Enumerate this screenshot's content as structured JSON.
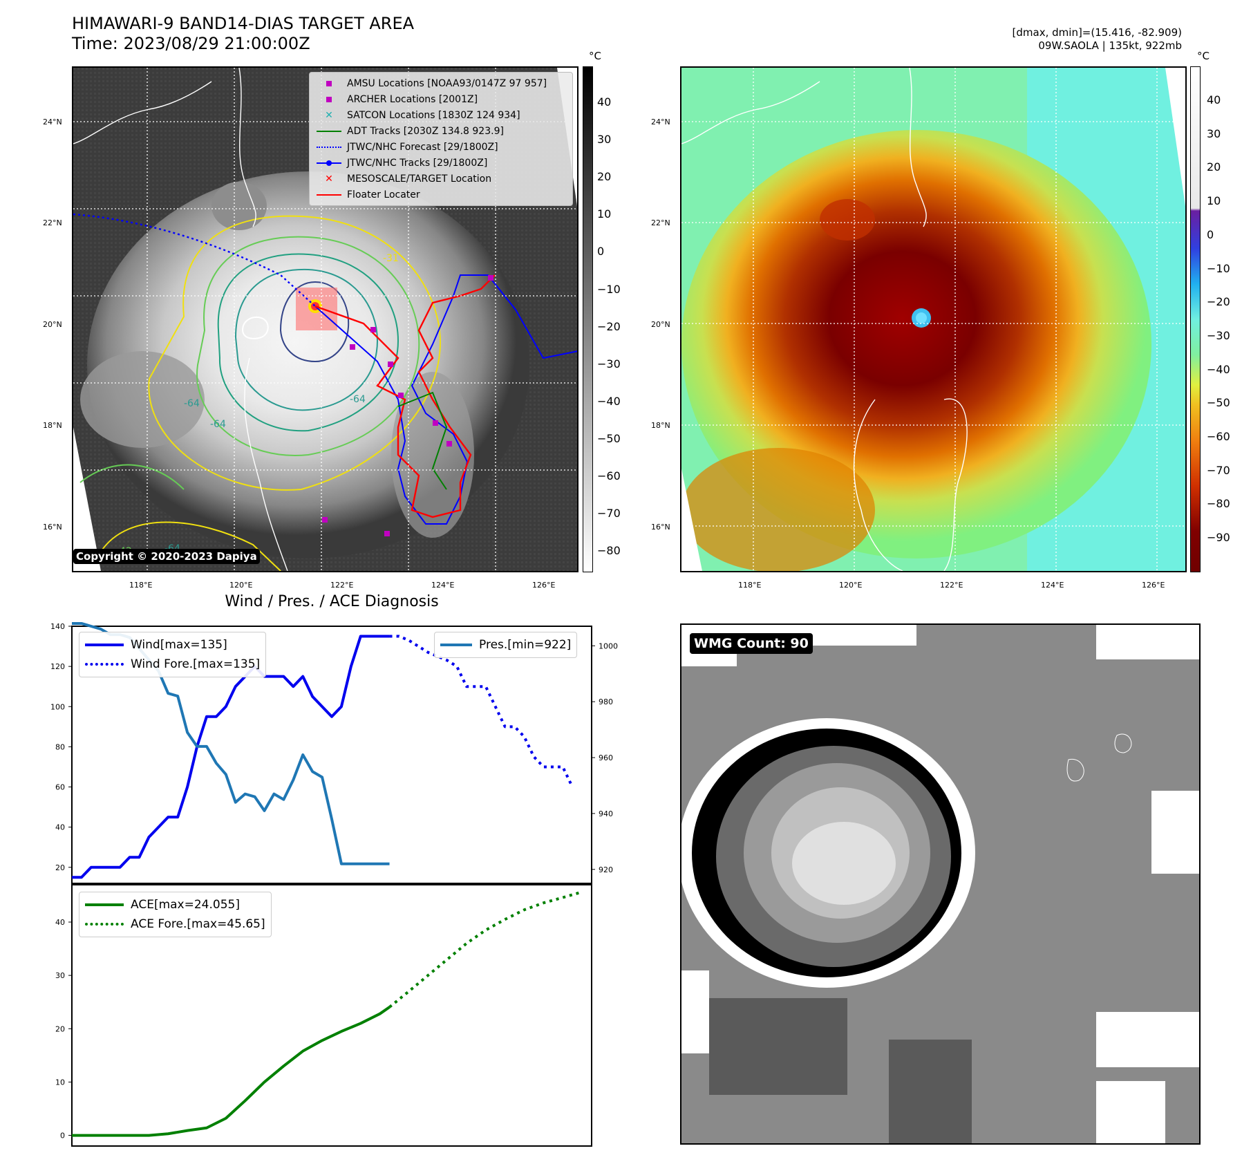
{
  "header": {
    "title_line1": "HIMAWARI-9 BAND14-DIAS TARGET AREA",
    "title_line2": "Time: 2023/08/29 21:00:00Z",
    "right_line1": "[dmax, dmin]=(15.416, -82.909)",
    "right_line2": "09W.SAOLA | 135kt, 922mb"
  },
  "map_left": {
    "lat_labels": [
      "24°N",
      "22°N",
      "20°N",
      "18°N",
      "16°N"
    ],
    "lon_labels": [
      "118°E",
      "120°E",
      "122°E",
      "124°E",
      "126°E"
    ],
    "copyright": "Copyright © 2020-2023 Dapiya",
    "contour_labels": [
      "-31",
      "-64",
      "-64",
      "-64",
      "-64",
      "-42"
    ],
    "legend": [
      {
        "label": "AMSU Locations [NOAA93/0147Z 97 957]",
        "color": "#c000c0",
        "kind": "square"
      },
      {
        "label": "ARCHER Locations [2001Z]",
        "color": "#c000c0",
        "kind": "square"
      },
      {
        "label": "SATCON Locations [1830Z 124 934]",
        "color": "#20b0b0",
        "kind": "x"
      },
      {
        "label": "ADT Tracks [2030Z 134.8 923.9]",
        "color": "#008000",
        "kind": "line"
      },
      {
        "label": "JTWC/NHC Forecast [29/1800Z]",
        "color": "#0000ff",
        "kind": "dotted"
      },
      {
        "label": "JTWC/NHC Tracks [29/1800Z]",
        "color": "#0000ff",
        "kind": "dotline"
      },
      {
        "label": "MESOSCALE/TARGET Location",
        "color": "#ff0000",
        "kind": "x"
      },
      {
        "label": "Floater Locater",
        "color": "#ff0000",
        "kind": "line"
      }
    ]
  },
  "colorbar_left": {
    "unit": "°C",
    "ticks": [
      "40",
      "30",
      "20",
      "10",
      "0",
      "−10",
      "−20",
      "−30",
      "−40",
      "−50",
      "−60",
      "−70",
      "−80"
    ]
  },
  "map_right": {
    "lat_labels": [
      "24°N",
      "22°N",
      "20°N",
      "18°N",
      "16°N"
    ],
    "lon_labels": [
      "118°E",
      "120°E",
      "122°E",
      "124°E",
      "126°E"
    ]
  },
  "colorbar_right": {
    "unit": "°C",
    "ticks": [
      "40",
      "30",
      "20",
      "10",
      "0",
      "−10",
      "−20",
      "−30",
      "−40",
      "−50",
      "−60",
      "−70",
      "−80",
      "−90"
    ]
  },
  "wmg": {
    "label": "WMG Count: 90"
  },
  "chart_data": [
    {
      "type": "line",
      "title": "Wind / Pres. / ACE Diagnosis",
      "ylabel": "Wind",
      "y2label": "Pressure",
      "ylim": [
        12,
        140
      ],
      "yticks": [
        20,
        40,
        60,
        80,
        100,
        120,
        140
      ],
      "y2lim": [
        915,
        1007
      ],
      "y2ticks": [
        920,
        940,
        960,
        980,
        1000
      ],
      "x_index_range": [
        0,
        54
      ],
      "series": [
        {
          "name": "Wind[max=135]",
          "color": "#0000ee",
          "style": "solid",
          "axis": "left",
          "x": [
            0,
            1,
            2,
            3,
            4,
            5,
            6,
            7,
            8,
            9,
            10,
            11,
            12,
            13,
            14,
            15,
            16,
            17,
            18,
            19,
            20,
            21,
            22,
            23,
            24,
            25,
            26,
            27,
            28,
            29,
            30,
            31,
            32,
            33
          ],
          "y": [
            15,
            15,
            20,
            20,
            20,
            20,
            25,
            25,
            35,
            40,
            45,
            45,
            60,
            80,
            95,
            95,
            100,
            110,
            115,
            120,
            115,
            115,
            115,
            110,
            115,
            105,
            100,
            95,
            100,
            120,
            135,
            135,
            135,
            135
          ]
        },
        {
          "name": "Wind Fore.[max=135]",
          "color": "#0000ee",
          "style": "dotted",
          "axis": "left",
          "x": [
            33,
            34,
            35,
            36,
            37,
            38,
            39,
            40,
            41,
            42,
            43,
            44,
            45,
            46,
            47,
            48,
            49,
            50,
            51,
            52
          ],
          "y": [
            135,
            135,
            133,
            130,
            127,
            125,
            123,
            120,
            110,
            110,
            110,
            100,
            90,
            90,
            85,
            75,
            70,
            70,
            70,
            60
          ]
        },
        {
          "name": "Pres.[min=922]",
          "color": "#1f77b4",
          "style": "solid",
          "axis": "right",
          "x": [
            0,
            1,
            2,
            3,
            4,
            5,
            6,
            7,
            8,
            9,
            10,
            11,
            12,
            13,
            14,
            15,
            16,
            17,
            18,
            19,
            20,
            21,
            22,
            23,
            24,
            25,
            26,
            27,
            28,
            29,
            30,
            31,
            32,
            33
          ],
          "y": [
            1008,
            1008,
            1007,
            1006,
            1004,
            1004,
            1003,
            999,
            995,
            991,
            983,
            982,
            969,
            964,
            964,
            958,
            954,
            944,
            947,
            946,
            941,
            947,
            945,
            952,
            961,
            955,
            953,
            938,
            922,
            922,
            922,
            922,
            922,
            922
          ]
        }
      ]
    },
    {
      "type": "line",
      "ylabel": "ACE",
      "ylim": [
        -2,
        47
      ],
      "yticks": [
        0,
        10,
        20,
        30,
        40
      ],
      "x_index_range": [
        0,
        54
      ],
      "series": [
        {
          "name": "ACE[max=24.055]",
          "color": "#008000",
          "style": "solid",
          "x": [
            0,
            4,
            8,
            10,
            12,
            14,
            16,
            18,
            20,
            22,
            24,
            26,
            28,
            30,
            32,
            33
          ],
          "y": [
            0,
            0,
            0,
            0.3,
            0.9,
            1.4,
            3.2,
            6.5,
            10,
            13,
            15.8,
            17.8,
            19.5,
            21,
            22.8,
            24.055
          ]
        },
        {
          "name": "ACE Fore.[max=45.65]",
          "color": "#008000",
          "style": "dotted",
          "x": [
            33,
            35,
            37,
            39,
            41,
            43,
            45,
            47,
            49,
            51,
            53
          ],
          "y": [
            24.055,
            27,
            30,
            33,
            36,
            38.5,
            40.5,
            42.3,
            43.6,
            44.6,
            45.65
          ]
        }
      ]
    }
  ]
}
